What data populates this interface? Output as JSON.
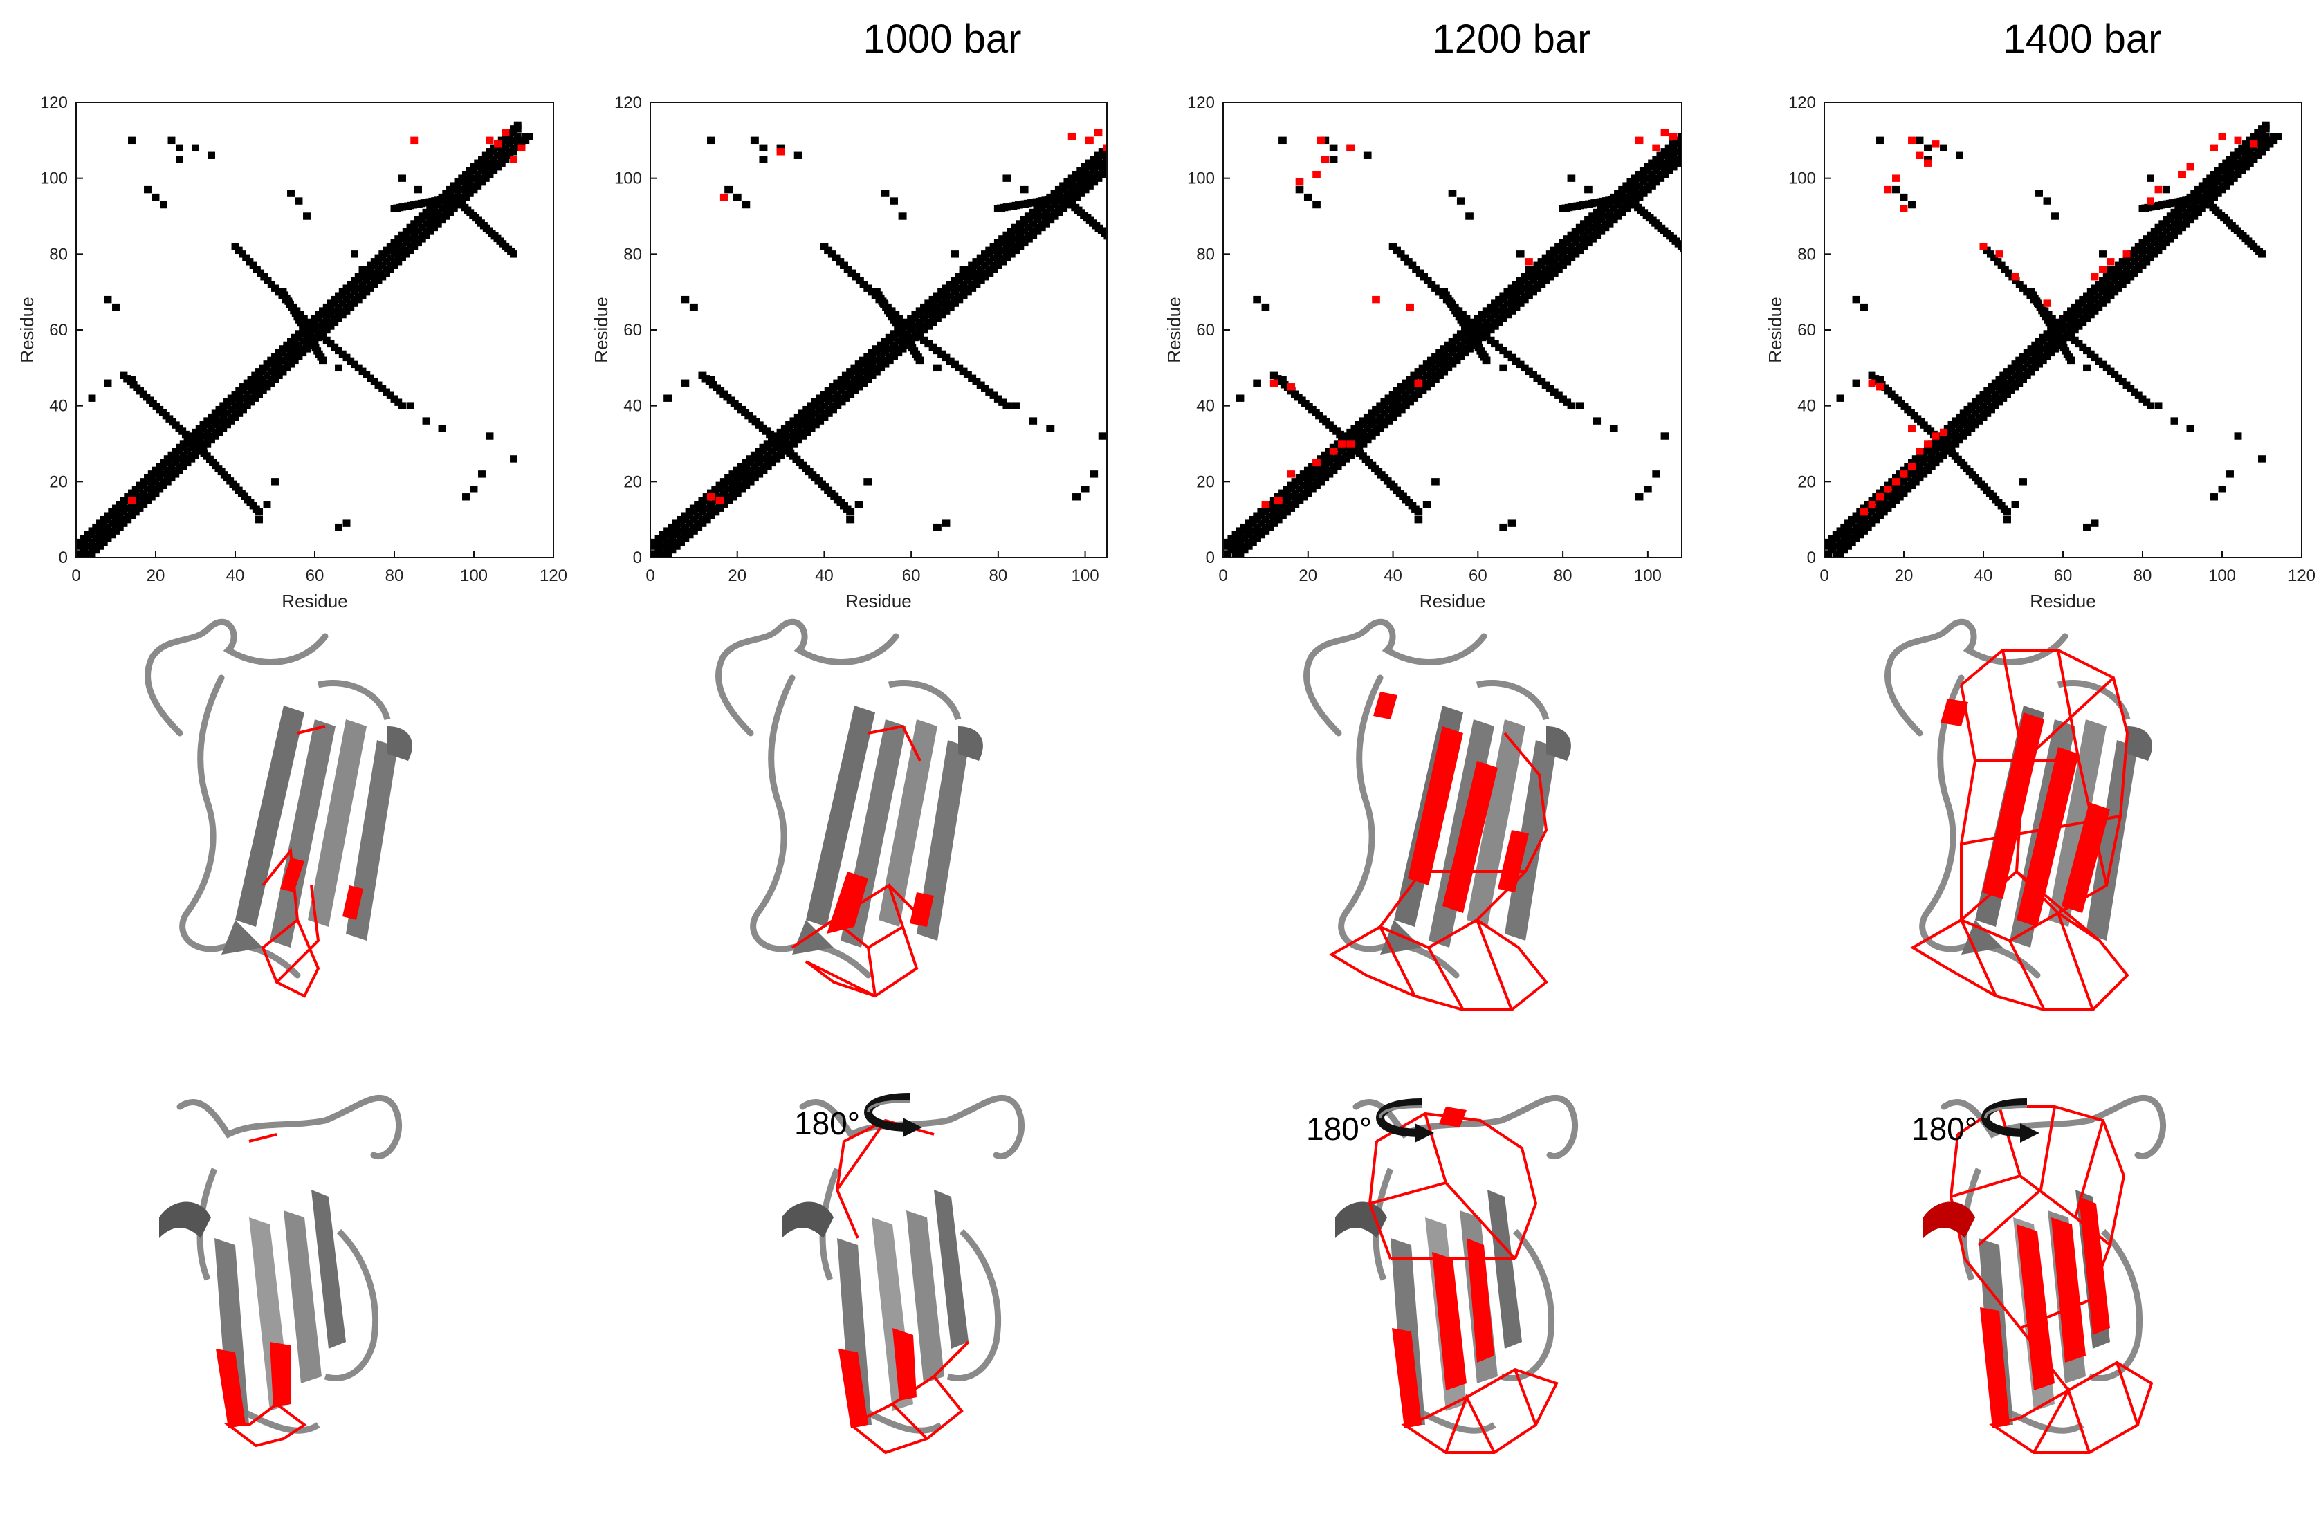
{
  "figure": {
    "rotation_label": "180°"
  },
  "colors": {
    "native_contact": "#000000",
    "lost_contact": "#ff0000",
    "ribbon": "#8a8a8a",
    "ribbon_dark": "#555555"
  },
  "chart_data": [
    {
      "type": "scatter",
      "panel": "contact-map-1",
      "title": "",
      "xlabel": "Residue",
      "ylabel": "Residue",
      "xlim": [
        0,
        120
      ],
      "ylim": [
        0,
        120
      ],
      "xticks": [
        0,
        20,
        40,
        60,
        80,
        100,
        120
      ],
      "yticks": [
        0,
        20,
        40,
        60,
        80,
        100,
        120
      ],
      "lost_contacts": [
        [
          14,
          15
        ],
        [
          85,
          110
        ],
        [
          104,
          110
        ],
        [
          106,
          109
        ],
        [
          108,
          112
        ],
        [
          112,
          108
        ],
        [
          110,
          105
        ]
      ]
    },
    {
      "type": "scatter",
      "panel": "contact-map-2",
      "title": "1000 bar",
      "xlabel": "Residue",
      "ylabel": "Residue",
      "xlim": [
        0,
        105
      ],
      "ylim": [
        0,
        120
      ],
      "xticks": [
        0,
        20,
        40,
        60,
        80,
        100
      ],
      "yticks": [
        0,
        20,
        40,
        60,
        80,
        100,
        120
      ],
      "lost_contacts": [
        [
          14,
          16
        ],
        [
          16,
          15
        ],
        [
          97,
          111
        ],
        [
          101,
          110
        ],
        [
          103,
          112
        ],
        [
          105,
          108
        ],
        [
          30,
          107
        ],
        [
          17,
          95
        ]
      ]
    },
    {
      "type": "scatter",
      "panel": "contact-map-3",
      "title": "1200 bar",
      "xlabel": "Residue",
      "ylabel": "Residue",
      "xlim": [
        0,
        108
      ],
      "ylim": [
        0,
        120
      ],
      "xticks": [
        0,
        20,
        40,
        60,
        80,
        100
      ],
      "yticks": [
        0,
        20,
        40,
        60,
        80,
        100,
        120
      ],
      "lost_contacts": [
        [
          10,
          14
        ],
        [
          13,
          15
        ],
        [
          16,
          22
        ],
        [
          22,
          25
        ],
        [
          28,
          30
        ],
        [
          30,
          30
        ],
        [
          26,
          28
        ],
        [
          12,
          46
        ],
        [
          16,
          45
        ],
        [
          36,
          68
        ],
        [
          44,
          66
        ],
        [
          46,
          46
        ],
        [
          72,
          78
        ],
        [
          98,
          110
        ],
        [
          102,
          108
        ],
        [
          106,
          111
        ],
        [
          104,
          112
        ],
        [
          23,
          110
        ],
        [
          24,
          105
        ],
        [
          30,
          108
        ],
        [
          18,
          99
        ],
        [
          22,
          101
        ]
      ]
    },
    {
      "type": "scatter",
      "panel": "contact-map-4",
      "title": "1400 bar",
      "xlabel": "Residue",
      "ylabel": "Residue",
      "xlim": [
        0,
        120
      ],
      "ylim": [
        0,
        120
      ],
      "xticks": [
        0,
        20,
        40,
        60,
        80,
        100,
        120
      ],
      "yticks": [
        0,
        20,
        40,
        60,
        80,
        100,
        120
      ],
      "lost_contacts": [
        [
          10,
          12
        ],
        [
          12,
          14
        ],
        [
          14,
          16
        ],
        [
          16,
          18
        ],
        [
          18,
          20
        ],
        [
          20,
          22
        ],
        [
          22,
          24
        ],
        [
          24,
          28
        ],
        [
          26,
          30
        ],
        [
          28,
          32
        ],
        [
          30,
          33
        ],
        [
          22,
          34
        ],
        [
          12,
          46
        ],
        [
          14,
          45
        ],
        [
          40,
          82
        ],
        [
          44,
          80
        ],
        [
          48,
          74
        ],
        [
          56,
          67
        ],
        [
          68,
          74
        ],
        [
          70,
          76
        ],
        [
          72,
          78
        ],
        [
          76,
          80
        ],
        [
          82,
          94
        ],
        [
          84,
          97
        ],
        [
          90,
          101
        ],
        [
          92,
          103
        ],
        [
          98,
          108
        ],
        [
          100,
          111
        ],
        [
          104,
          110
        ],
        [
          108,
          109
        ],
        [
          22,
          110
        ],
        [
          24,
          106
        ],
        [
          26,
          104
        ],
        [
          28,
          109
        ],
        [
          16,
          97
        ],
        [
          18,
          100
        ],
        [
          20,
          92
        ]
      ]
    }
  ]
}
